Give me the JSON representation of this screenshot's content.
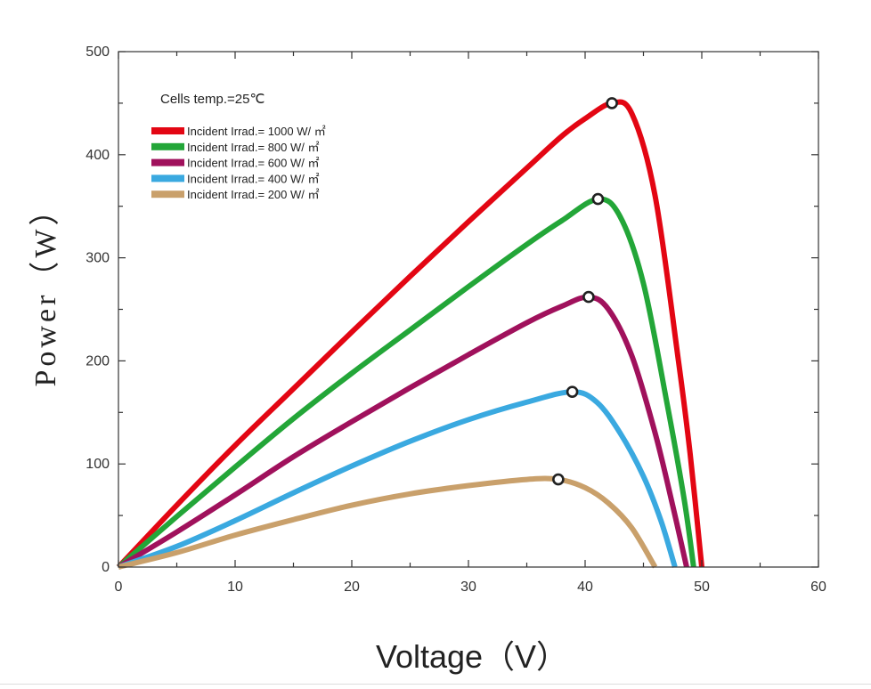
{
  "chart_data": {
    "type": "line",
    "annotation": "Cells temp.=25℃",
    "xlabel": "Voltage（V）",
    "ylabel": "Power（W）",
    "xlim": [
      0,
      60
    ],
    "ylim": [
      0,
      500
    ],
    "xticks": [
      0,
      10,
      20,
      30,
      40,
      50,
      60
    ],
    "yticks": [
      0,
      100,
      200,
      300,
      400,
      500
    ],
    "legend_position": "top-left",
    "grid": false,
    "series": [
      {
        "name": "Incident Irrad.= 1000 W/ ㎡",
        "color": "#e30613",
        "x": [
          0,
          5,
          10,
          15,
          20,
          25,
          30,
          35,
          38,
          40,
          42.3,
          44,
          46,
          48,
          49,
          50
        ],
        "values": [
          0,
          60,
          118,
          173,
          228,
          282,
          335,
          387,
          418,
          435,
          450,
          440,
          360,
          200,
          110,
          0
        ],
        "mpp": [
          42.3,
          450
        ]
      },
      {
        "name": "Incident Irrad.= 800 W/ ㎡",
        "color": "#23a638",
        "x": [
          0,
          5,
          10,
          15,
          20,
          25,
          30,
          35,
          38,
          41.1,
          43,
          45,
          47,
          48.5,
          49.3
        ],
        "values": [
          0,
          49,
          97,
          144,
          188,
          230,
          272,
          313,
          336,
          357,
          340,
          275,
          160,
          65,
          0
        ],
        "mpp": [
          41.1,
          357
        ]
      },
      {
        "name": "Incident Irrad.= 600 W/ ㎡",
        "color": "#a0115c",
        "x": [
          0,
          5,
          10,
          15,
          20,
          25,
          30,
          35,
          38,
          40.3,
          42,
          44,
          46,
          47.5,
          48.7
        ],
        "values": [
          0,
          34,
          70,
          107,
          141,
          174,
          206,
          237,
          253,
          262,
          250,
          205,
          130,
          60,
          0
        ],
        "mpp": [
          40.3,
          262
        ]
      },
      {
        "name": "Incident Irrad.= 400 W/ ㎡",
        "color": "#3aa9e0",
        "x": [
          0,
          5,
          10,
          15,
          20,
          25,
          30,
          35,
          38.9,
          41,
          43,
          45,
          46.5,
          47.7
        ],
        "values": [
          0,
          20,
          45,
          72,
          98,
          122,
          143,
          160,
          170,
          160,
          130,
          88,
          45,
          0
        ],
        "mpp": [
          38.9,
          170
        ]
      },
      {
        "name": "Incident Irrad.= 200 W/ ㎡",
        "color": "#c9a06b",
        "x": [
          0,
          5,
          10,
          15,
          20,
          25,
          30,
          35,
          37.7,
          40,
          42,
          44,
          46
        ],
        "values": [
          0,
          14,
          31,
          46,
          60,
          71,
          79,
          85,
          85,
          77,
          62,
          38,
          0
        ],
        "mpp": [
          37.7,
          85
        ]
      }
    ]
  }
}
